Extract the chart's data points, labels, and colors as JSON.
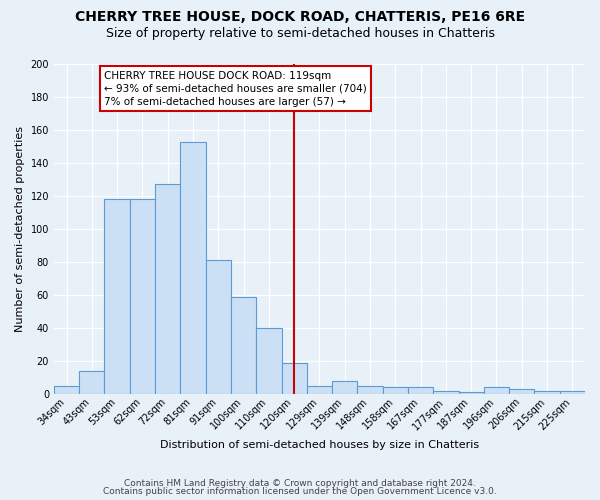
{
  "title": "CHERRY TREE HOUSE, DOCK ROAD, CHATTERIS, PE16 6RE",
  "subtitle": "Size of property relative to semi-detached houses in Chatteris",
  "xlabel": "Distribution of semi-detached houses by size in Chatteris",
  "ylabel": "Number of semi-detached properties",
  "footer_line1": "Contains HM Land Registry data © Crown copyright and database right 2024.",
  "footer_line2": "Contains public sector information licensed under the Open Government Licence v3.0.",
  "categories": [
    "34sqm",
    "43sqm",
    "53sqm",
    "62sqm",
    "72sqm",
    "81sqm",
    "91sqm",
    "100sqm",
    "110sqm",
    "120sqm",
    "129sqm",
    "139sqm",
    "148sqm",
    "158sqm",
    "167sqm",
    "177sqm",
    "187sqm",
    "196sqm",
    "206sqm",
    "215sqm",
    "225sqm"
  ],
  "values": [
    5,
    14,
    118,
    118,
    127,
    153,
    81,
    59,
    40,
    19,
    5,
    8,
    5,
    4,
    4,
    2,
    1,
    4,
    3,
    2,
    2
  ],
  "bar_color": "#cce0f5",
  "bar_edge_color": "#5b9bd5",
  "vline_color": "#cc0000",
  "vline_x_index": 9,
  "annotation_line1": "CHERRY TREE HOUSE DOCK ROAD: 119sqm",
  "annotation_line2": "← 93% of semi-detached houses are smaller (704)",
  "annotation_line3": "7% of semi-detached houses are larger (57) →",
  "annotation_box_facecolor": "#ffffff",
  "annotation_box_edgecolor": "#cc0000",
  "ylim": [
    0,
    200
  ],
  "yticks": [
    0,
    20,
    40,
    60,
    80,
    100,
    120,
    140,
    160,
    180,
    200
  ],
  "background_color": "#e8f0f8",
  "title_fontsize": 10,
  "subtitle_fontsize": 9,
  "axis_label_fontsize": 8,
  "tick_fontsize": 7,
  "footer_fontsize": 6.5
}
